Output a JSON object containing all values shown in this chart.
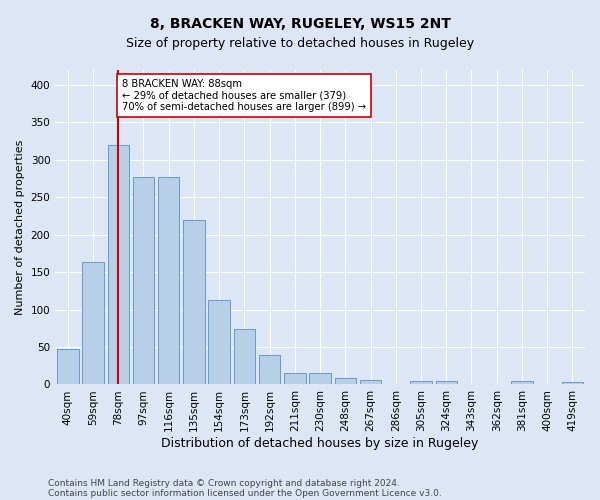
{
  "title": "8, BRACKEN WAY, RUGELEY, WS15 2NT",
  "subtitle": "Size of property relative to detached houses in Rugeley",
  "xlabel": "Distribution of detached houses by size in Rugeley",
  "ylabel": "Number of detached properties",
  "footer_line1": "Contains HM Land Registry data © Crown copyright and database right 2024.",
  "footer_line2": "Contains public sector information licensed under the Open Government Licence v3.0.",
  "categories": [
    "40sqm",
    "59sqm",
    "78sqm",
    "97sqm",
    "116sqm",
    "135sqm",
    "154sqm",
    "173sqm",
    "192sqm",
    "211sqm",
    "230sqm",
    "248sqm",
    "267sqm",
    "286sqm",
    "305sqm",
    "324sqm",
    "343sqm",
    "362sqm",
    "381sqm",
    "400sqm",
    "419sqm"
  ],
  "values": [
    48,
    163,
    320,
    277,
    277,
    219,
    113,
    74,
    39,
    15,
    15,
    9,
    6,
    0,
    4,
    4,
    0,
    0,
    5,
    0,
    3
  ],
  "bar_color": "#b8cfe8",
  "bar_edge_color": "#6699cc",
  "vline_x": 2,
  "vline_color": "#cc0000",
  "annotation_text": "8 BRACKEN WAY: 88sqm\n← 29% of detached houses are smaller (379)\n70% of semi-detached houses are larger (899) →",
  "annotation_box_color": "#ffffff",
  "annotation_box_edge": "#cc0000",
  "ylim": [
    0,
    420
  ],
  "background_color": "#dce6f5",
  "plot_bg_color": "#dce6f5",
  "grid_color": "#ffffff",
  "yticks": [
    0,
    50,
    100,
    150,
    200,
    250,
    300,
    350,
    400
  ],
  "title_fontsize": 10,
  "subtitle_fontsize": 9,
  "ylabel_fontsize": 8,
  "xlabel_fontsize": 9,
  "tick_fontsize": 7.5,
  "footer_fontsize": 6.5
}
